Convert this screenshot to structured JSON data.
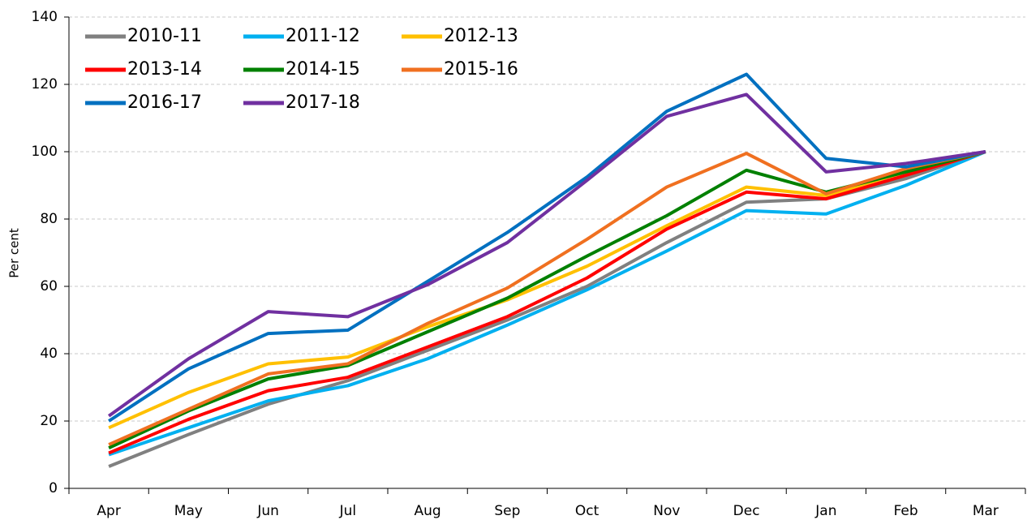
{
  "chart_data": {
    "type": "line",
    "y_label": "Per cent",
    "categories": [
      "Apr",
      "May",
      "Jun",
      "Jul",
      "Aug",
      "Sep",
      "Oct",
      "Nov",
      "Dec",
      "Jan",
      "Feb",
      "Mar"
    ],
    "series": [
      {
        "name": "2010-11",
        "color": "#808080",
        "values": [
          6.5,
          16,
          25,
          32,
          41,
          50,
          60,
          73,
          85,
          86,
          92,
          100
        ]
      },
      {
        "name": "2011-12",
        "color": "#00b0f0",
        "values": [
          10,
          18,
          26,
          30.5,
          38.5,
          48.5,
          59,
          70.5,
          82.5,
          81.5,
          90,
          100
        ]
      },
      {
        "name": "2012-13",
        "color": "#ffc000",
        "values": [
          18,
          28.5,
          37,
          39,
          48,
          56,
          66,
          78,
          89.5,
          87,
          94,
          100
        ]
      },
      {
        "name": "2013-14",
        "color": "#ff0000",
        "values": [
          10.5,
          20.5,
          29,
          33,
          42,
          51,
          62.5,
          77,
          88,
          86,
          93,
          100
        ]
      },
      {
        "name": "2014-15",
        "color": "#008000",
        "values": [
          12,
          23,
          32.5,
          36.5,
          46.5,
          56.5,
          69,
          81,
          94.5,
          88,
          94,
          100
        ]
      },
      {
        "name": "2015-16",
        "color": "#f07020",
        "values": [
          13,
          23.5,
          34,
          37,
          49,
          59.5,
          74,
          89.5,
          99.5,
          87.5,
          95,
          100
        ]
      },
      {
        "name": "2016-17",
        "color": "#0070c0",
        "values": [
          20,
          35.5,
          46,
          47,
          61.5,
          76,
          92.5,
          112,
          123,
          98,
          95.5,
          100
        ]
      },
      {
        "name": "2017-18",
        "color": "#7030a0",
        "values": [
          21.5,
          38.5,
          52.5,
          51,
          60.5,
          73,
          91.5,
          110.5,
          117,
          94,
          96.5,
          100
        ]
      }
    ],
    "ylim": [
      0,
      140
    ],
    "yticks": [
      0,
      20,
      40,
      60,
      80,
      100,
      120,
      140
    ],
    "grid": true,
    "legend": "upper left"
  }
}
